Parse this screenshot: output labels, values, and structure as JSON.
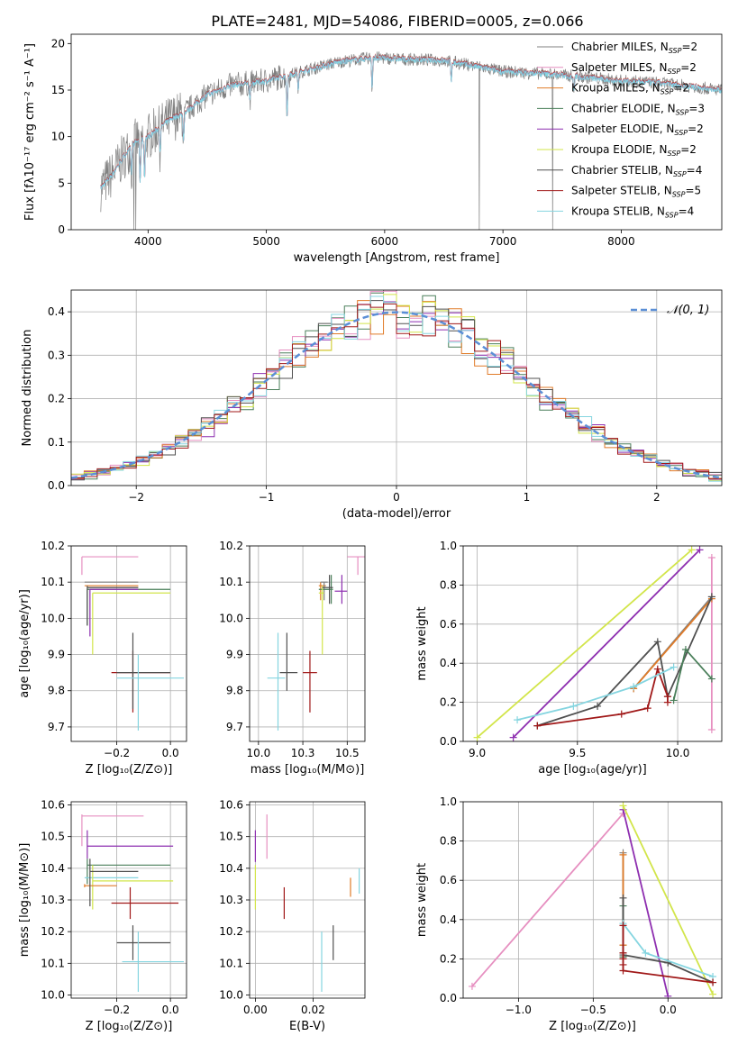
{
  "figure_title": "PLATE=2481, MJD=54086, FIBERID=0005, z=0.066",
  "colors": [
    "#808080",
    "#e68fc0",
    "#e07b28",
    "#4a7f5a",
    "#8e2fb0",
    "#d2e54a",
    "#505050",
    "#a01818",
    "#85d5e0"
  ],
  "chart_data": [
    {
      "id": "spectrum",
      "type": "line",
      "title": "PLATE=2481, MJD=54086, FIBERID=0005, z=0.066",
      "xlabel": "wavelength [Angstrom, rest frame]",
      "ylabel": "Flux [fλ10⁻¹⁷ erg cm⁻² s⁻¹ A⁻¹]",
      "xlim": [
        3350,
        8850
      ],
      "ylim": [
        0,
        21
      ],
      "xticks": [
        4000,
        5000,
        6000,
        7000,
        8000
      ],
      "yticks": [
        0,
        5,
        10,
        15,
        20
      ],
      "legend_position": "right",
      "legend": [
        {
          "name": "Chabrier MILES, N",
          "sub": "SSP",
          "n": "=2"
        },
        {
          "name": "Salpeter MILES, N",
          "sub": "SSP",
          "n": "=2"
        },
        {
          "name": "Kroupa MILES, N",
          "sub": "SSP",
          "n": "=2"
        },
        {
          "name": "Chabrier ELODIE, N",
          "sub": "SSP",
          "n": "=3"
        },
        {
          "name": "Salpeter ELODIE, N",
          "sub": "SSP",
          "n": "=2"
        },
        {
          "name": "Kroupa ELODIE, N",
          "sub": "SSP",
          "n": "=2"
        },
        {
          "name": "Chabrier STELIB, N",
          "sub": "SSP",
          "n": "=4"
        },
        {
          "name": "Salpeter STELIB, N",
          "sub": "SSP",
          "n": "=5"
        },
        {
          "name": "Kroupa STELIB, N",
          "sub": "SSP",
          "n": "=4"
        }
      ],
      "continuum": [
        [
          3600,
          4.5
        ],
        [
          3700,
          6
        ],
        [
          3800,
          8
        ],
        [
          3900,
          9.5
        ],
        [
          4000,
          10
        ],
        [
          4100,
          11
        ],
        [
          4200,
          12
        ],
        [
          4300,
          12.5
        ],
        [
          4400,
          13.5
        ],
        [
          4500,
          14.5
        ],
        [
          4700,
          15.5
        ],
        [
          5000,
          16
        ],
        [
          5300,
          17
        ],
        [
          5600,
          18
        ],
        [
          5900,
          18.5
        ],
        [
          6200,
          18.3
        ],
        [
          6500,
          18.2
        ],
        [
          6800,
          17.5
        ],
        [
          7000,
          17
        ],
        [
          7300,
          16.8
        ],
        [
          7600,
          16.5
        ],
        [
          8000,
          16
        ],
        [
          8300,
          15.8
        ],
        [
          8850,
          15
        ]
      ],
      "absorption_lines": [
        [
          3860,
          3.0
        ],
        [
          3933,
          5.0
        ],
        [
          3970,
          4.5
        ],
        [
          4102,
          2.5
        ],
        [
          4300,
          3.0
        ],
        [
          4861,
          2.0
        ],
        [
          5175,
          4.5
        ],
        [
          5270,
          2.0
        ],
        [
          5894,
          3.5
        ],
        [
          6563,
          2.0
        ],
        [
          7600,
          1.5
        ]
      ],
      "spikes": [
        [
          3880,
          0
        ],
        [
          3895,
          0
        ],
        [
          6800,
          0
        ],
        [
          7420,
          0
        ]
      ]
    },
    {
      "id": "residuals",
      "type": "histogram",
      "xlabel": "(data-model)/error",
      "ylabel": "Normed distribution",
      "xlim": [
        -2.5,
        2.5
      ],
      "ylim": [
        0,
        0.45
      ],
      "xticks": [
        -2,
        -1,
        0,
        1,
        2
      ],
      "yticks": [
        0.0,
        0.1,
        0.2,
        0.3,
        0.4
      ],
      "legend": "𝒩(0, 1)",
      "legend_position": "top-right",
      "bin_width": 0.1,
      "reference_curve": "normal(0,1)"
    },
    {
      "id": "age-vs-Z",
      "type": "errorbar",
      "xlabel": "Z [log₁₀(Z/Z⊙)]",
      "ylabel": "age  [log₁₀(age/yr)]",
      "xlim": [
        -0.37,
        0.06
      ],
      "ylim": [
        9.66,
        10.2
      ],
      "xticks": [
        -0.2,
        0.0
      ],
      "yticks": [
        9.7,
        9.8,
        9.9,
        10.0,
        10.1,
        10.2
      ],
      "points": [
        {
          "s": 1,
          "x": -0.33,
          "xe": [
            -0.33,
            -0.12
          ],
          "y": 10.17,
          "ye": [
            10.12,
            10.17
          ]
        },
        {
          "s": 2,
          "x": -0.32,
          "xe": [
            -0.32,
            -0.12
          ],
          "y": 10.09,
          "ye": [
            10.09,
            10.09
          ]
        },
        {
          "s": 0,
          "x": -0.32,
          "xe": [
            -0.32,
            -0.12
          ],
          "y": 10.1,
          "ye": [
            10.1,
            10.1
          ]
        },
        {
          "s": 3,
          "x": -0.31,
          "xe": [
            -0.31,
            0.0
          ],
          "y": 10.08,
          "ye": [
            9.98,
            10.08
          ]
        },
        {
          "s": 4,
          "x": -0.3,
          "xe": [
            -0.3,
            -0.12
          ],
          "y": 10.08,
          "ye": [
            9.95,
            10.08
          ]
        },
        {
          "s": 5,
          "x": -0.29,
          "xe": [
            -0.29,
            0.0
          ],
          "y": 10.07,
          "ye": [
            9.9,
            10.07
          ]
        },
        {
          "s": 6,
          "x": -0.31,
          "xe": [
            -0.31,
            -0.12
          ],
          "y": 10.085,
          "ye": [
            9.98,
            10.09
          ]
        },
        {
          "s": 7,
          "x": -0.14,
          "xe": [
            -0.22,
            0.0
          ],
          "y": 9.85,
          "ye": [
            9.74,
            9.91
          ]
        },
        {
          "s": 6,
          "x": -0.14,
          "xe": [
            -0.2,
            0.0
          ],
          "y": 9.85,
          "ye": [
            9.75,
            9.96
          ]
        },
        {
          "s": 8,
          "x": -0.12,
          "xe": [
            -0.2,
            0.05
          ],
          "y": 9.835,
          "ye": [
            9.69,
            9.9
          ]
        }
      ]
    },
    {
      "id": "age-vs-mass",
      "type": "errorbar",
      "xlabel": "mass [log₁₀(M/M⊙)]",
      "ylabel": "",
      "xlim": [
        9.95,
        10.6
      ],
      "ylim": [
        9.66,
        10.2
      ],
      "xticks": [
        10.0,
        10.25,
        10.5
      ],
      "yticks": [
        9.7,
        9.8,
        9.9,
        10.0,
        10.1,
        10.2
      ],
      "points": [
        {
          "s": 1,
          "x": 10.56,
          "xe": [
            10.5,
            10.6
          ],
          "y": 10.17,
          "ye": [
            10.12,
            10.17
          ]
        },
        {
          "s": 2,
          "x": 10.35,
          "xe": [
            10.34,
            10.38
          ],
          "y": 10.09,
          "ye": [
            10.05,
            10.1
          ]
        },
        {
          "s": 0,
          "x": 10.37,
          "xe": [
            10.35,
            10.39
          ],
          "y": 10.1,
          "ye": [
            10.05,
            10.1
          ]
        },
        {
          "s": 3,
          "x": 10.41,
          "xe": [
            10.34,
            10.42
          ],
          "y": 10.08,
          "ye": [
            10.04,
            10.12
          ]
        },
        {
          "s": 4,
          "x": 10.47,
          "xe": [
            10.43,
            10.5
          ],
          "y": 10.075,
          "ye": [
            10.04,
            10.12
          ]
        },
        {
          "s": 5,
          "x": 10.36,
          "xe": [
            10.34,
            10.37
          ],
          "y": 10.07,
          "ye": [
            9.9,
            10.09
          ]
        },
        {
          "s": 6,
          "x": 10.4,
          "xe": [
            10.36,
            10.42
          ],
          "y": 10.085,
          "ye": [
            10.04,
            10.12
          ]
        },
        {
          "s": 7,
          "x": 10.29,
          "xe": [
            10.25,
            10.33
          ],
          "y": 9.85,
          "ye": [
            9.74,
            9.91
          ]
        },
        {
          "s": 6,
          "x": 10.16,
          "xe": [
            10.12,
            10.22
          ],
          "y": 9.85,
          "ye": [
            9.8,
            9.96
          ]
        },
        {
          "s": 8,
          "x": 10.11,
          "xe": [
            10.05,
            10.15
          ],
          "y": 9.835,
          "ye": [
            9.69,
            9.96
          ]
        }
      ]
    },
    {
      "id": "weight-vs-age",
      "type": "line",
      "xlabel": "age  [log₁₀(age/yr)]",
      "ylabel": "mass weight",
      "xlim": [
        8.93,
        10.22
      ],
      "ylim": [
        0,
        1
      ],
      "xticks": [
        9.0,
        9.5,
        10.0
      ],
      "yticks": [
        0.0,
        0.2,
        0.4,
        0.6,
        0.8,
        1.0
      ],
      "series": [
        {
          "s": 5,
          "x": [
            9.0,
            10.07
          ],
          "y": [
            0.02,
            0.98
          ]
        },
        {
          "s": 4,
          "x": [
            9.18,
            10.11
          ],
          "y": [
            0.02,
            0.98
          ]
        },
        {
          "s": 1,
          "x": [
            10.17,
            10.17
          ],
          "y": [
            0.06,
            0.94
          ]
        },
        {
          "s": 0,
          "x": [
            9.78,
            10.17
          ],
          "y": [
            0.27,
            0.74
          ]
        },
        {
          "s": 2,
          "x": [
            9.78,
            10.17
          ],
          "y": [
            0.27,
            0.73
          ]
        },
        {
          "s": 6,
          "x": [
            9.3,
            9.6,
            9.9,
            9.95,
            10.17
          ],
          "y": [
            0.08,
            0.18,
            0.51,
            0.23,
            0.74
          ]
        },
        {
          "s": 3,
          "x": [
            9.98,
            10.04,
            10.17
          ],
          "y": [
            0.21,
            0.47,
            0.32
          ]
        },
        {
          "s": 7,
          "x": [
            9.3,
            9.72,
            9.85,
            9.9,
            9.95,
            9.95
          ],
          "y": [
            0.08,
            0.14,
            0.17,
            0.37,
            0.23,
            0.2
          ]
        },
        {
          "s": 8,
          "x": [
            9.2,
            9.48,
            9.78,
            9.98
          ],
          "y": [
            0.11,
            0.18,
            0.28,
            0.38
          ]
        }
      ]
    },
    {
      "id": "mass-vs-Z",
      "type": "errorbar",
      "xlabel": "Z [log₁₀(Z/Z⊙)]",
      "ylabel": "mass [log₁₀(M/M⊙)]",
      "xlim": [
        -0.37,
        0.06
      ],
      "ylim": [
        9.99,
        10.61
      ],
      "xticks": [
        -0.2,
        0.0
      ],
      "yticks": [
        10.0,
        10.1,
        10.2,
        10.3,
        10.4,
        10.5,
        10.6
      ],
      "points": [
        {
          "s": 1,
          "x": -0.33,
          "xe": [
            -0.33,
            -0.1
          ],
          "y": 10.565,
          "ye": [
            10.47,
            10.57
          ]
        },
        {
          "s": 4,
          "x": -0.31,
          "xe": [
            -0.31,
            0.01
          ],
          "y": 10.47,
          "ye": [
            10.43,
            10.52
          ]
        },
        {
          "s": 3,
          "x": -0.31,
          "xe": [
            -0.31,
            0.0
          ],
          "y": 10.41,
          "ye": [
            10.35,
            10.43
          ]
        },
        {
          "s": 8,
          "x": -0.32,
          "xe": [
            -0.32,
            -0.12
          ],
          "y": 10.37,
          "ye": [
            10.37,
            10.37
          ]
        },
        {
          "s": 5,
          "x": -0.29,
          "xe": [
            -0.29,
            0.01
          ],
          "y": 10.36,
          "ye": [
            10.27,
            10.41
          ]
        },
        {
          "s": 2,
          "x": -0.32,
          "xe": [
            -0.32,
            -0.2
          ],
          "y": 10.345,
          "ye": [
            10.34,
            10.35
          ]
        },
        {
          "s": 6,
          "x": -0.3,
          "xe": [
            -0.3,
            -0.12
          ],
          "y": 10.39,
          "ye": [
            10.28,
            10.43
          ]
        },
        {
          "s": 7,
          "x": -0.15,
          "xe": [
            -0.22,
            0.03
          ],
          "y": 10.29,
          "ye": [
            10.24,
            10.34
          ]
        },
        {
          "s": 6,
          "x": -0.14,
          "xe": [
            -0.2,
            0.0
          ],
          "y": 10.165,
          "ye": [
            10.11,
            10.22
          ]
        },
        {
          "s": 8,
          "x": -0.12,
          "xe": [
            -0.18,
            0.05
          ],
          "y": 10.105,
          "ye": [
            10.01,
            10.2
          ]
        }
      ]
    },
    {
      "id": "mass-vs-EBV",
      "type": "errorbar",
      "xlabel": "E(B-V)",
      "ylabel": "",
      "xlim": [
        -0.002,
        0.038
      ],
      "ylim": [
        9.99,
        10.61
      ],
      "xticks": [
        0.0,
        0.02
      ],
      "yticks": [
        10.0,
        10.1,
        10.2,
        10.3,
        10.4,
        10.5,
        10.6
      ],
      "points": [
        {
          "s": 1,
          "x": 0.004,
          "xe": [
            0.004,
            0.004
          ],
          "y": 10.5,
          "ye": [
            10.43,
            10.57
          ]
        },
        {
          "s": 4,
          "x": 0.0,
          "xe": [
            0.0,
            0.0
          ],
          "y": 10.47,
          "ye": [
            10.42,
            10.52
          ]
        },
        {
          "s": 5,
          "x": 0.0,
          "xe": [
            0.0,
            0.0
          ],
          "y": 10.34,
          "ye": [
            10.27,
            10.41
          ]
        },
        {
          "s": 7,
          "x": 0.01,
          "xe": [
            0.01,
            0.01
          ],
          "y": 10.29,
          "ye": [
            10.24,
            10.34
          ]
        },
        {
          "s": 2,
          "x": 0.033,
          "xe": [
            0.033,
            0.033
          ],
          "y": 10.345,
          "ye": [
            10.31,
            10.37
          ]
        },
        {
          "s": 8,
          "x": 0.036,
          "xe": [
            0.036,
            0.036
          ],
          "y": 10.36,
          "ye": [
            10.32,
            10.4
          ]
        },
        {
          "s": 6,
          "x": 0.027,
          "xe": [
            0.027,
            0.027
          ],
          "y": 10.165,
          "ye": [
            10.11,
            10.22
          ]
        },
        {
          "s": 8,
          "x": 0.023,
          "xe": [
            0.023,
            0.023
          ],
          "y": 10.105,
          "ye": [
            10.01,
            10.2
          ]
        }
      ]
    },
    {
      "id": "weight-vs-Z",
      "type": "line",
      "xlabel": "Z [log₁₀(Z/Z⊙)]",
      "ylabel": "mass weight",
      "xlim": [
        -1.37,
        0.36
      ],
      "ylim": [
        0,
        1
      ],
      "xticks": [
        -1.0,
        -0.5,
        0.0
      ],
      "yticks": [
        0.0,
        0.2,
        0.4,
        0.6,
        0.8,
        1.0
      ],
      "series": [
        {
          "s": 1,
          "x": [
            -1.31,
            -0.3
          ],
          "y": [
            0.06,
            0.94
          ]
        },
        {
          "s": 4,
          "x": [
            -0.3,
            0.0
          ],
          "y": [
            0.96,
            0.01
          ]
        },
        {
          "s": 5,
          "x": [
            -0.3,
            0.3
          ],
          "y": [
            0.98,
            0.02
          ]
        },
        {
          "s": 0,
          "x": [
            -0.3,
            -0.3
          ],
          "y": [
            0.27,
            0.74
          ]
        },
        {
          "s": 2,
          "x": [
            -0.3,
            -0.3
          ],
          "y": [
            0.27,
            0.73
          ]
        },
        {
          "s": 3,
          "x": [
            -0.3,
            -0.3
          ],
          "y": [
            0.21,
            0.47
          ]
        },
        {
          "s": 6,
          "x": [
            -0.3,
            -0.3,
            -0.3,
            0.0,
            0.3
          ],
          "y": [
            0.51,
            0.23,
            0.22,
            0.18,
            0.08
          ]
        },
        {
          "s": 8,
          "x": [
            -0.3,
            -0.15,
            0.3
          ],
          "y": [
            0.38,
            0.23,
            0.11
          ]
        },
        {
          "s": 7,
          "x": [
            -0.3,
            -0.3,
            -0.3,
            -0.3,
            -0.3,
            0.3
          ],
          "y": [
            0.37,
            0.23,
            0.2,
            0.17,
            0.14,
            0.08
          ]
        }
      ]
    }
  ]
}
